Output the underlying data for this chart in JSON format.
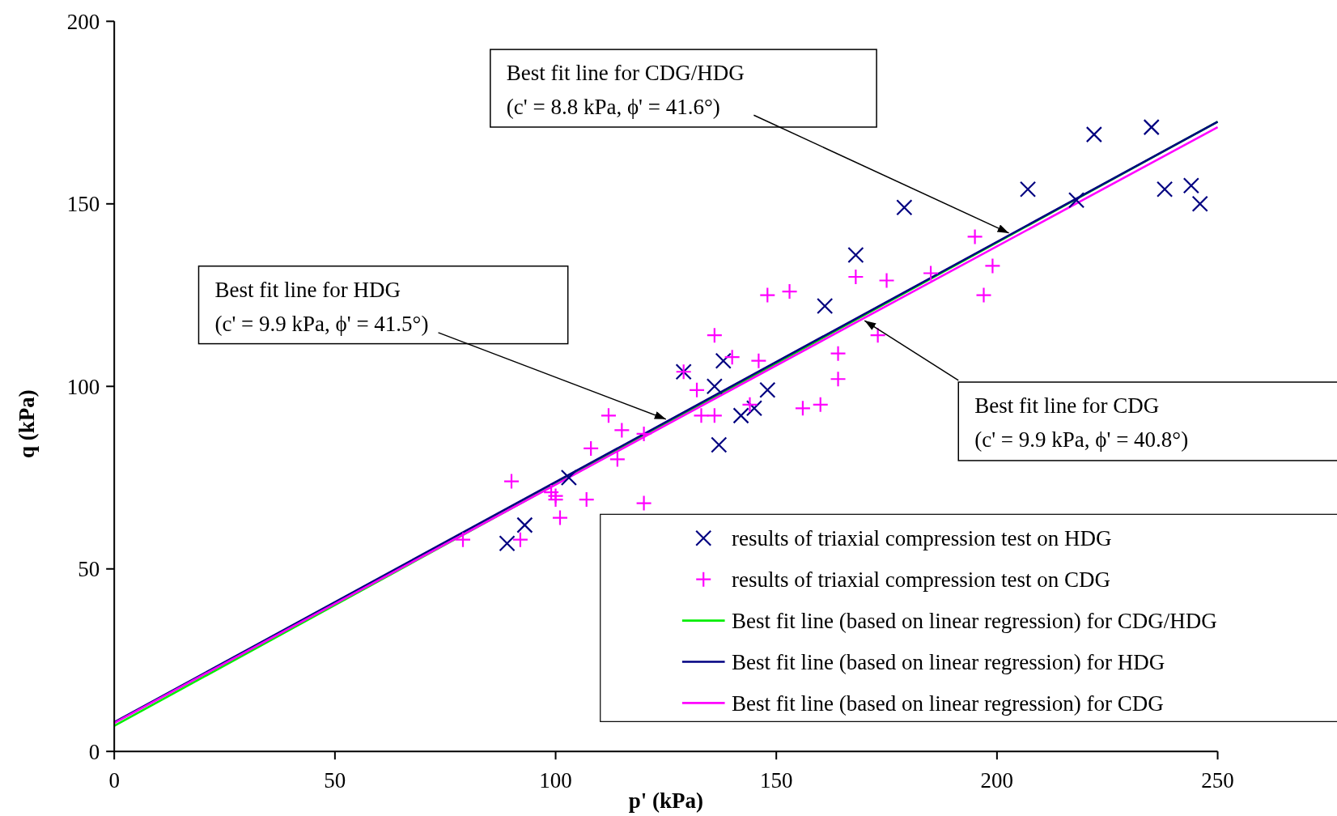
{
  "chart_data": {
    "type": "scatter",
    "xlabel": "p' (kPa)",
    "ylabel": "q (kPa)",
    "xlim": [
      0,
      250
    ],
    "xticks": [
      0,
      50,
      100,
      150,
      200,
      250
    ],
    "ylim": [
      0,
      200
    ],
    "yticks": [
      0,
      50,
      100,
      150,
      200
    ],
    "grid": false,
    "legend": "bottom right",
    "series": [
      {
        "name": "results of triaxial compression test on HDG",
        "type": "scatter",
        "marker": "x",
        "color": "#000080",
        "x": [
          89,
          93,
          103,
          129,
          136,
          137,
          138,
          142,
          145,
          148,
          161,
          168,
          179,
          207,
          218,
          222,
          235,
          238,
          244,
          246
        ],
        "values": [
          57,
          62,
          75,
          104,
          100,
          84,
          107,
          92,
          94,
          99,
          122,
          136,
          149,
          154,
          151,
          169,
          171,
          154,
          155,
          150
        ]
      },
      {
        "name": "results of triaxial compression test on CDG",
        "type": "scatter",
        "marker": "cross",
        "color": "#ff00ff",
        "x": [
          79,
          90,
          92,
          99,
          100,
          100,
          101,
          107,
          108,
          112,
          114,
          115,
          120,
          120,
          129,
          132,
          133,
          136,
          136,
          140,
          144,
          146,
          148,
          153,
          156,
          160,
          164,
          164,
          168,
          173,
          175,
          185,
          195,
          197,
          199
        ],
        "values": [
          58,
          74,
          58,
          71,
          70,
          69,
          64,
          69,
          83,
          92,
          80,
          88,
          87,
          68,
          104,
          99,
          92,
          92,
          114,
          108,
          95,
          107,
          125,
          126,
          94,
          95,
          102,
          109,
          130,
          114,
          129,
          131,
          141,
          125,
          133
        ]
      },
      {
        "name": "Best fit line (based on linear regression) for CDG/HDG",
        "type": "line",
        "marker": "none",
        "color": "#00ee00",
        "x": [
          0,
          250
        ],
        "values": [
          7,
          172.5
        ]
      },
      {
        "name": "Best fit line (based on linear regression) for HDG",
        "type": "line",
        "marker": "none",
        "color": "#000080",
        "x": [
          0,
          250
        ],
        "values": [
          8,
          172.5
        ]
      },
      {
        "name": "Best fit line (based on linear regression) for CDG",
        "type": "line",
        "marker": "none",
        "color": "#ff00ff",
        "x": [
          0,
          250
        ],
        "values": [
          7.8,
          171
        ]
      }
    ],
    "annotations": [
      {
        "text": "Best fit line for CDG/HDG\n(c' = 8.8 kPa, ϕ' = 41.6°)",
        "x": 202.7,
        "y": 142
      },
      {
        "text": "Best fit line for HDG\n(c' = 9.9 kPa, ϕ' = 41.5°)",
        "x": 125,
        "y": 91
      },
      {
        "text": "Best fit line for CDG\n(c' = 9.9 kPa, ϕ' = 40.8°)",
        "x": 170,
        "y": 118
      }
    ]
  }
}
